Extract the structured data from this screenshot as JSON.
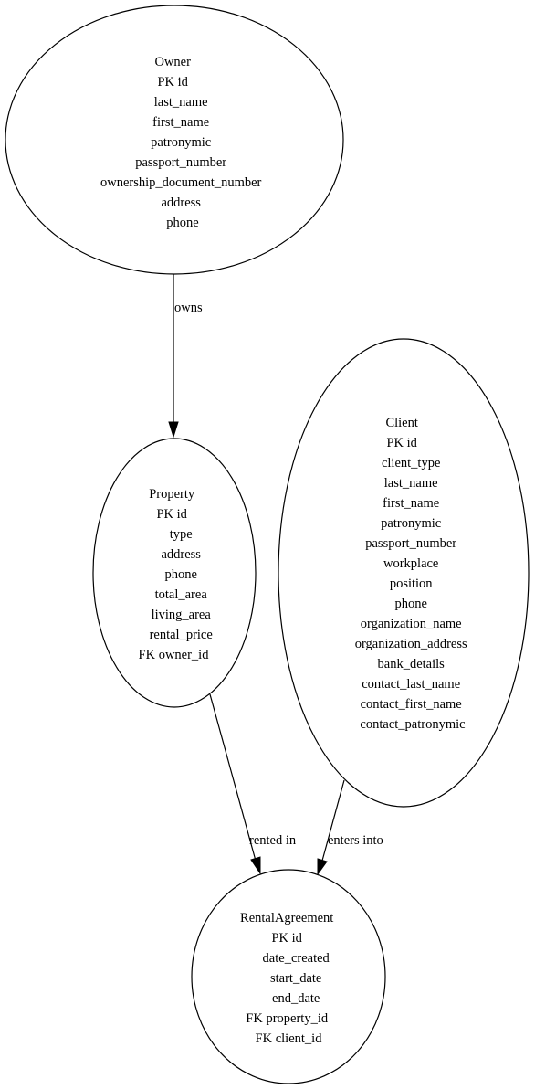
{
  "diagram": {
    "nodes": [
      {
        "id": "owner",
        "lines": [
          "Owner",
          "PK  id",
          "last_name",
          "first_name",
          "patronymic",
          "passport_number",
          "ownership_document_number",
          "address",
          "phone"
        ]
      },
      {
        "id": "property",
        "lines": [
          "Property",
          "PK  id",
          "type",
          "address",
          "phone",
          "total_area",
          "living_area",
          "rental_price",
          "FK  owner_id"
        ]
      },
      {
        "id": "client",
        "lines": [
          "Client",
          "PK  id",
          "client_type",
          "last_name",
          "first_name",
          "patronymic",
          "passport_number",
          "workplace",
          "position",
          "phone",
          "organization_name",
          "organization_address",
          "bank_details",
          "contact_last_name",
          "contact_first_name",
          "contact_patronymic"
        ]
      },
      {
        "id": "rental_agreement",
        "lines": [
          "RentalAgreement",
          "PK  id",
          "date_created",
          "start_date",
          "end_date",
          "FK  property_id",
          "FK  client_id"
        ]
      }
    ],
    "edges": [
      {
        "id": "owner-property",
        "label": "owns"
      },
      {
        "id": "property-rental",
        "label": "rented in"
      },
      {
        "id": "client-rental",
        "label": "enters into"
      }
    ]
  }
}
